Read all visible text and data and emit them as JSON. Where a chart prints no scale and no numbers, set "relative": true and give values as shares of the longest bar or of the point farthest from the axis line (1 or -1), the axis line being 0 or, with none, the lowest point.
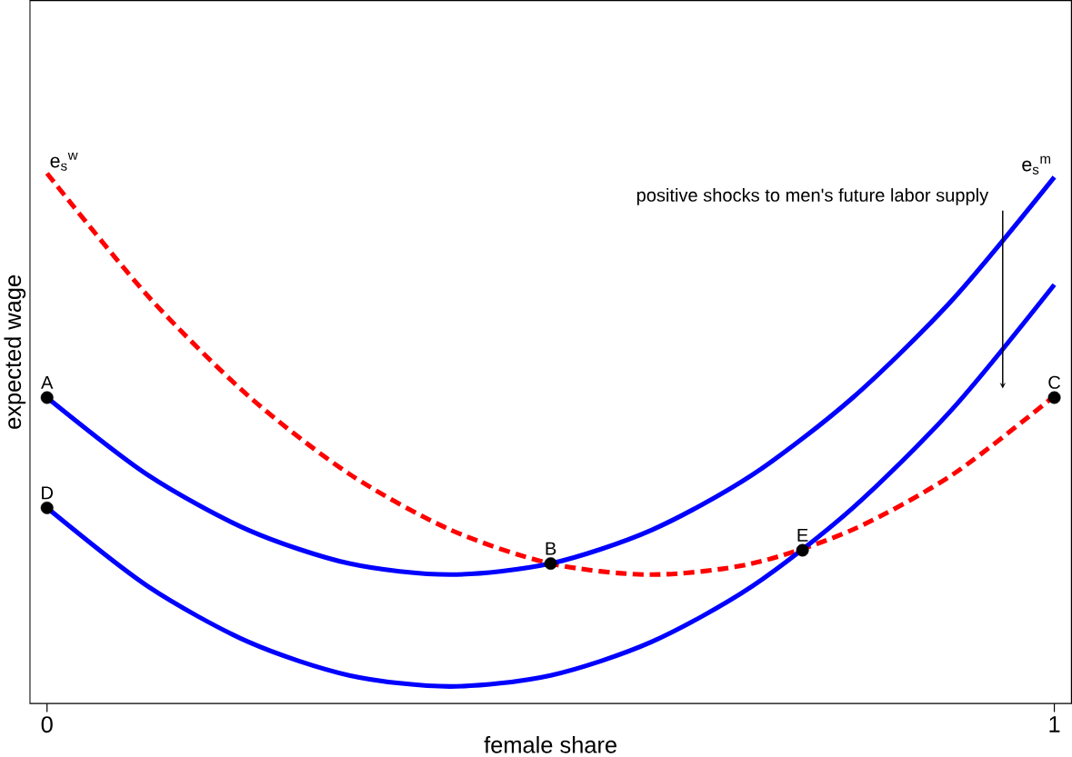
{
  "chart_data": {
    "type": "line",
    "relative": true,
    "xlabel": "female share",
    "ylabel": "expected wage",
    "xlim": [
      -0.017,
      1.017
    ],
    "xticks": [
      0,
      1
    ],
    "tick_labels": "x",
    "series": [
      {
        "name": "e$_{s}$$^{w}$",
        "color": "#ff0000",
        "line_style": "dashed",
        "x": [
          0,
          0.1,
          0.2,
          0.3,
          0.4,
          0.5,
          0.6,
          0.7,
          0.8,
          0.9,
          1
        ],
        "values": [
          1.0,
          0.769,
          0.58,
          0.433,
          0.328,
          0.264,
          0.243,
          0.264,
          0.328,
          0.433,
          0.58
        ]
      },
      {
        "name": "e$_{s}$$^{m}$",
        "color": "#0000ff",
        "line_style": "solid",
        "x": [
          0,
          0.1,
          0.2,
          0.3,
          0.4,
          0.5,
          0.6,
          0.7,
          0.8,
          0.9,
          1
        ],
        "values": [
          0.577,
          0.431,
          0.327,
          0.264,
          0.243,
          0.264,
          0.327,
          0.431,
          0.577,
          0.764,
          0.993
        ]
      },
      {
        "color": "#0000ff",
        "line_style": "solid",
        "x": [
          0,
          0.1,
          0.2,
          0.3,
          0.4,
          0.5,
          0.6,
          0.7,
          0.8,
          0.9,
          1
        ],
        "values": [
          0.369,
          0.221,
          0.116,
          0.053,
          0.032,
          0.053,
          0.116,
          0.221,
          0.369,
          0.558,
          0.79
        ]
      },
      {
        "type": "scatter",
        "color": "#000000",
        "x": [
          0,
          0.5,
          1,
          0,
          0.75
        ],
        "values": [
          0.577,
          0.264,
          0.577,
          0.369,
          0.289
        ]
      }
    ],
    "annotations": [
      {
        "text": "A",
        "x": 0,
        "y": 0.577
      },
      {
        "text": "B",
        "x": 0.5,
        "y": 0.264
      },
      {
        "text": "C",
        "x": 1,
        "y": 0.577
      },
      {
        "text": "D",
        "x": 0,
        "y": 0.369
      },
      {
        "text": "E",
        "x": 0.75,
        "y": 0.289
      },
      "positive shocks to men's future labor supply"
    ]
  }
}
